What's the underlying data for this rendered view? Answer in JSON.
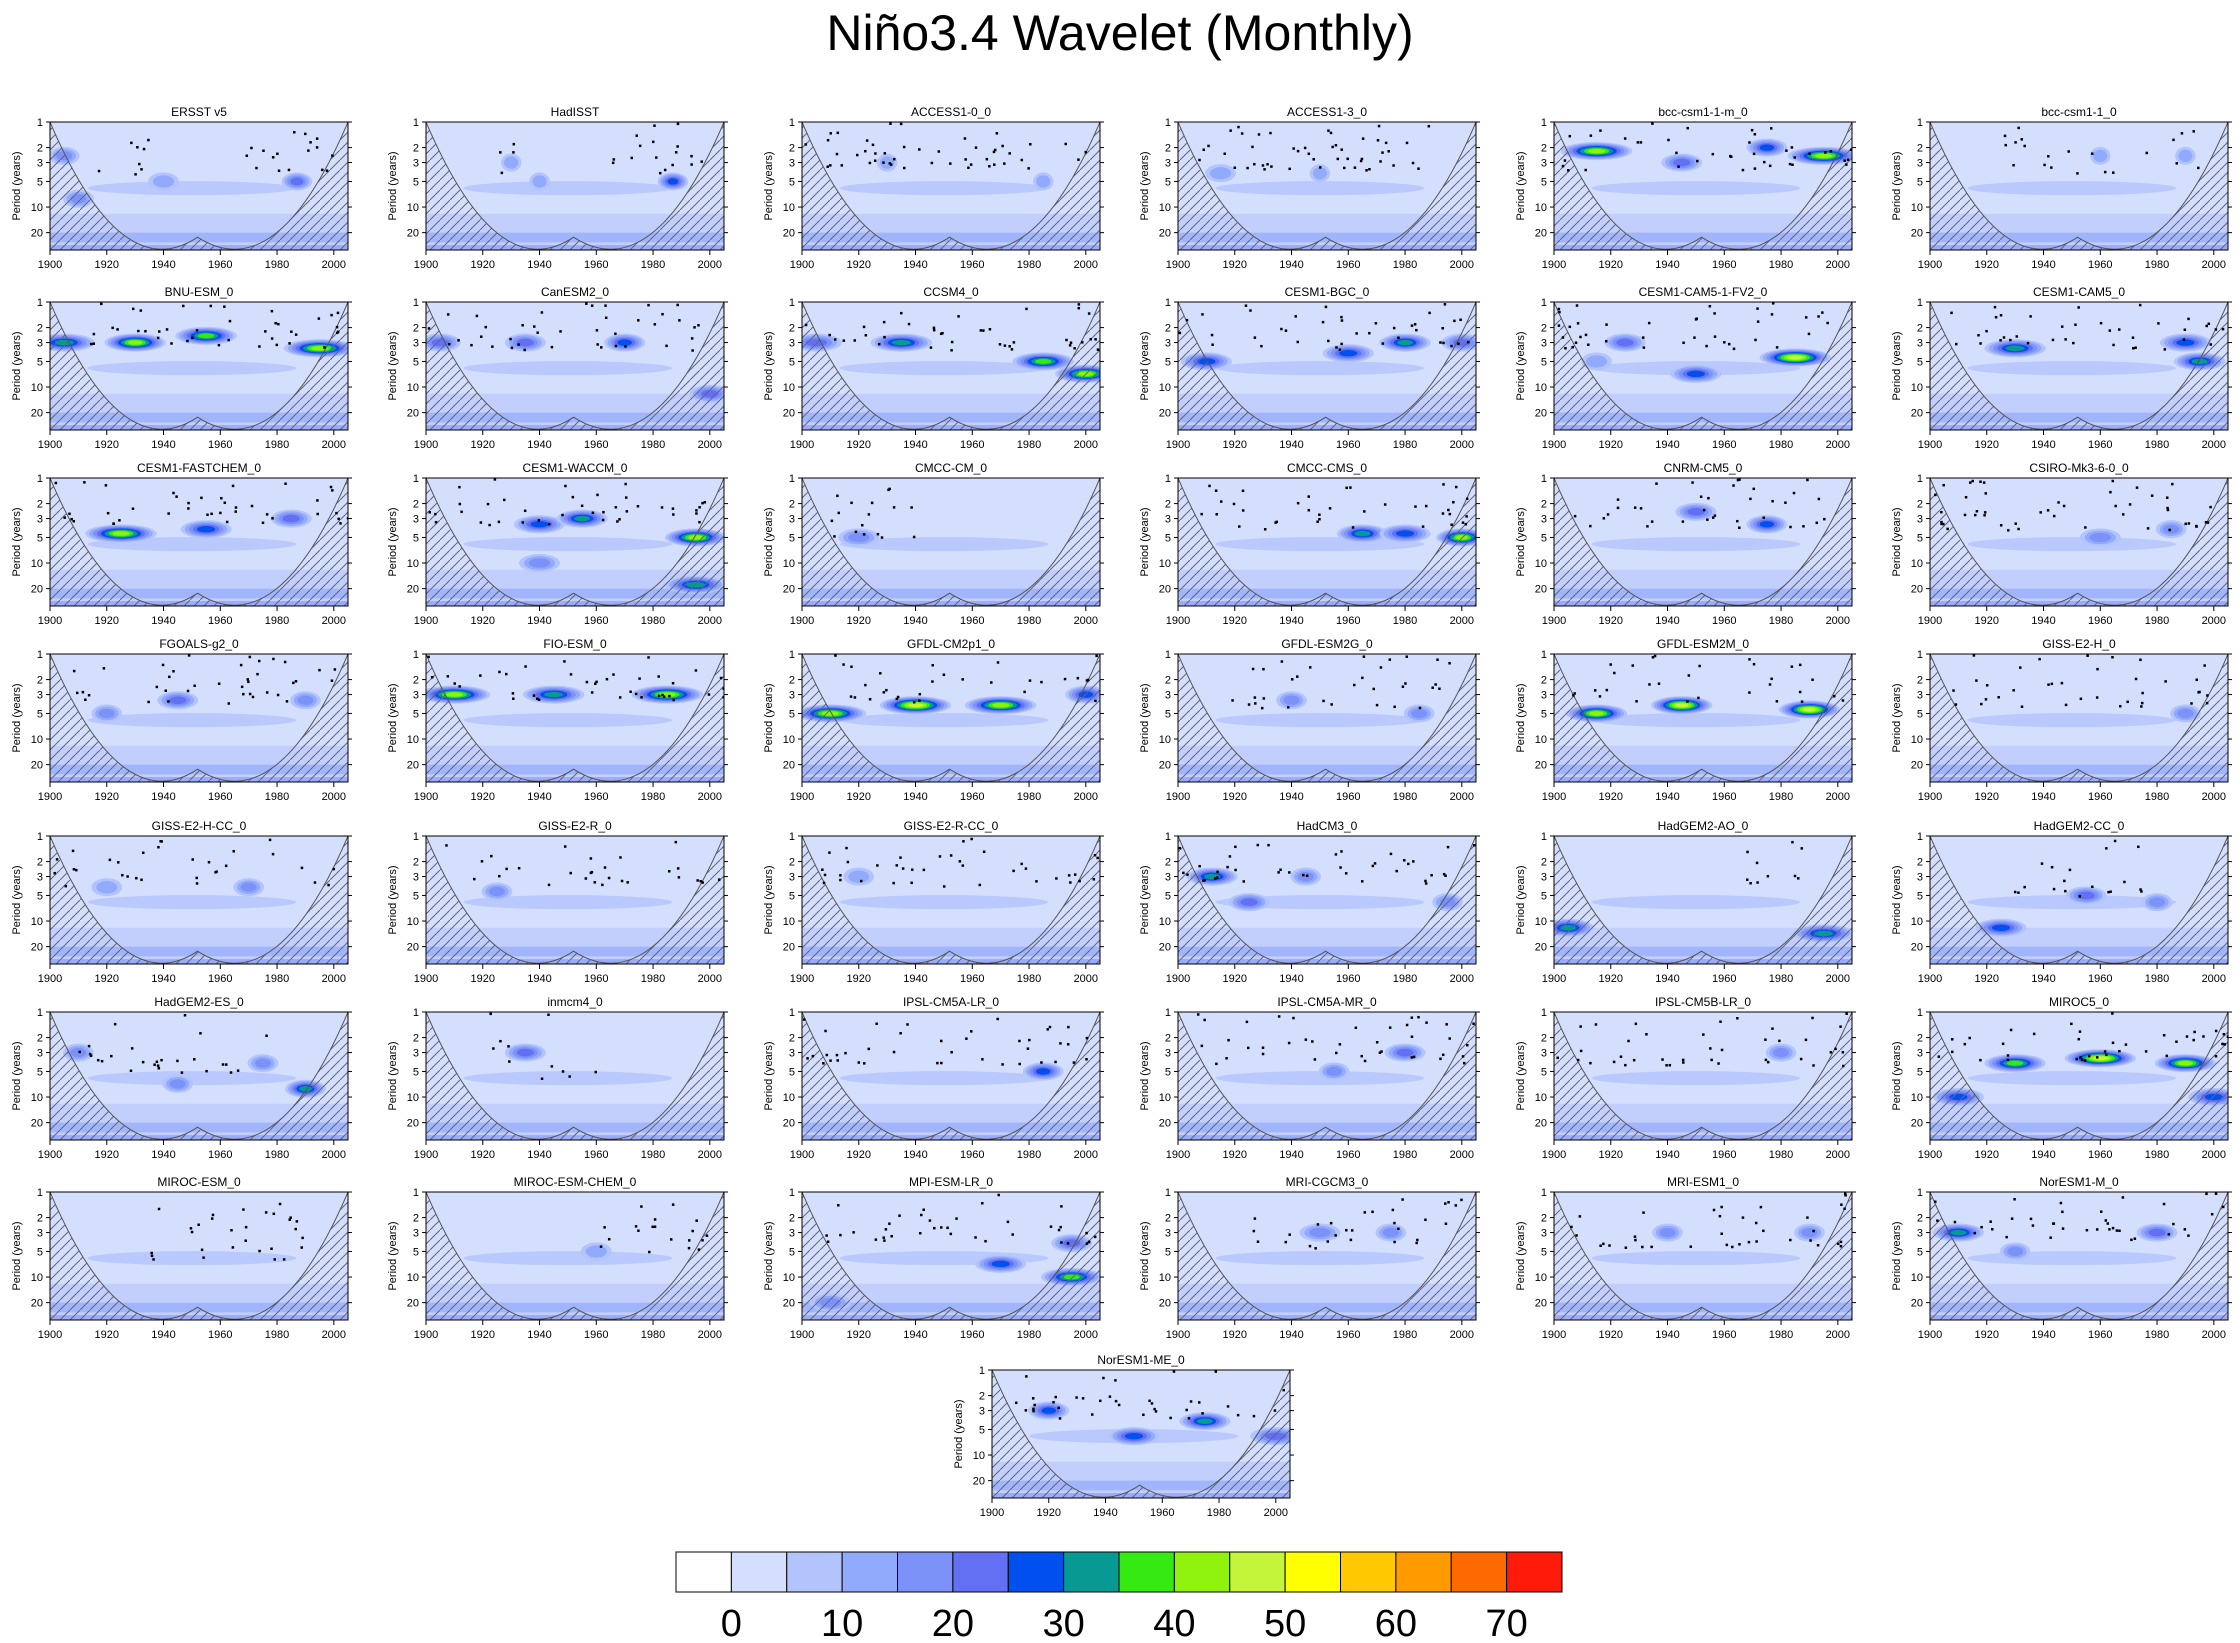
{
  "page": {
    "title": "Niño3.4 Wavelet (Monthly)"
  },
  "chart_data": {
    "type": "heatmap",
    "title": "Niño3.4 Wavelet (Monthly)",
    "xlabel": "",
    "ylabel": "Period (years)",
    "x_ticks": [
      1900,
      1920,
      1940,
      1960,
      1980,
      2000
    ],
    "y_ticks": [
      1,
      2,
      3,
      5,
      10,
      20
    ],
    "xlim": [
      1900,
      2005
    ],
    "ylim": [
      1,
      32
    ],
    "colorbar": {
      "levels": [
        0,
        5,
        10,
        15,
        20,
        25,
        30,
        35,
        40,
        45,
        50,
        55,
        60,
        65,
        70
      ],
      "tick_labels": [
        0,
        10,
        20,
        30,
        40,
        50,
        60,
        70
      ],
      "colors": [
        "#ffffff",
        "#d4defd",
        "#b3c3fc",
        "#91aafb",
        "#7d92f9",
        "#6470f3",
        "#0050f0",
        "#079a92",
        "#35ea13",
        "#8ff20c",
        "#c4f53a",
        "#ffff00",
        "#ffc800",
        "#ff9a00",
        "#ff6a00",
        "#ff1a0a"
      ]
    },
    "panels": [
      {
        "name": "ERSST v5",
        "blobs": [
          [
            1905,
            2.5,
            3,
            3
          ],
          [
            1940,
            5,
            3,
            2
          ],
          [
            1987,
            5,
            3,
            4
          ],
          [
            1910,
            8,
            3,
            3
          ]
        ],
        "dots": [
          [
            1912,
            1940,
            1.5,
            3
          ],
          [
            1965,
            2000,
            1.5,
            5
          ]
        ]
      },
      {
        "name": "HadISST",
        "blobs": [
          [
            1940,
            5,
            2,
            2
          ],
          [
            1987,
            5,
            3,
            5
          ],
          [
            1930,
            3,
            2,
            2
          ]
        ],
        "dots": [
          [
            1920,
            1935,
            1.5,
            3
          ],
          [
            1965,
            2000,
            1.5,
            5
          ]
        ]
      },
      {
        "name": "ACCESS1-0_0",
        "blobs": [
          [
            1930,
            3,
            2,
            2
          ],
          [
            1985,
            5,
            2,
            2
          ]
        ],
        "dots": [
          [
            1900,
            2000,
            1.2,
            5
          ]
        ]
      },
      {
        "name": "ACCESS1-3_0",
        "blobs": [
          [
            1915,
            4,
            3,
            2
          ],
          [
            1950,
            4,
            2,
            2
          ]
        ],
        "dots": [
          [
            1905,
            1990,
            1.3,
            6
          ]
        ]
      },
      {
        "name": "bcc-csm1-1-m_0",
        "blobs": [
          [
            1915,
            2.2,
            7,
            8
          ],
          [
            1945,
            3,
            4,
            4
          ],
          [
            1975,
            2,
            4,
            5
          ],
          [
            1995,
            2.5,
            7,
            8
          ]
        ],
        "dots": [
          [
            1900,
            2005,
            1.3,
            4
          ]
        ]
      },
      {
        "name": "bcc-csm1-1_0",
        "blobs": [
          [
            1960,
            2.5,
            2,
            2
          ],
          [
            1990,
            2.5,
            2,
            2
          ]
        ],
        "dots": [
          [
            1925,
            2000,
            1.5,
            3
          ]
        ]
      },
      {
        "name": "BNU-ESM_0",
        "blobs": [
          [
            1905,
            3,
            6,
            6
          ],
          [
            1930,
            3,
            6,
            8
          ],
          [
            1955,
            2.5,
            6,
            7
          ],
          [
            1995,
            3.5,
            7,
            8
          ]
        ],
        "dots": [
          [
            1900,
            2005,
            1.2,
            4
          ]
        ]
      },
      {
        "name": "CanESM2_0",
        "blobs": [
          [
            1905,
            3,
            4,
            4
          ],
          [
            1935,
            3,
            4,
            4
          ],
          [
            1970,
            3,
            4,
            5
          ],
          [
            2000,
            12,
            4,
            4
          ]
        ],
        "dots": [
          [
            1900,
            2005,
            1.3,
            4
          ]
        ]
      },
      {
        "name": "CCSM4_0",
        "blobs": [
          [
            1905,
            3,
            5,
            4
          ],
          [
            1935,
            3,
            6,
            6
          ],
          [
            1985,
            5,
            6,
            7
          ],
          [
            2000,
            7,
            6,
            8
          ]
        ],
        "dots": [
          [
            1900,
            2005,
            1.3,
            4
          ]
        ]
      },
      {
        "name": "CESM1-BGC_0",
        "blobs": [
          [
            1910,
            5,
            5,
            5
          ],
          [
            1960,
            4,
            5,
            5
          ],
          [
            1980,
            3,
            5,
            6
          ],
          [
            2000,
            3,
            4,
            4
          ]
        ],
        "dots": [
          [
            1900,
            2005,
            1.3,
            4
          ]
        ]
      },
      {
        "name": "CESM1-CAM5-1-FV2_0",
        "blobs": [
          [
            1925,
            3,
            4,
            4
          ],
          [
            1950,
            7,
            5,
            5
          ],
          [
            1985,
            4.5,
            7,
            9
          ],
          [
            1915,
            5,
            3,
            2
          ]
        ],
        "dots": [
          [
            1900,
            2005,
            1.3,
            4
          ]
        ]
      },
      {
        "name": "CESM1-CAM5_0",
        "blobs": [
          [
            1930,
            3.5,
            6,
            6
          ],
          [
            1990,
            3,
            5,
            5
          ],
          [
            1995,
            5,
            5,
            6
          ]
        ],
        "dots": [
          [
            1905,
            2005,
            1.3,
            4
          ]
        ]
      },
      {
        "name": "CESM1-FASTCHEM_0",
        "blobs": [
          [
            1925,
            4.5,
            7,
            8
          ],
          [
            1955,
            4,
            5,
            5
          ],
          [
            1985,
            3,
            4,
            4
          ]
        ],
        "dots": [
          [
            1900,
            2005,
            1.2,
            4
          ]
        ]
      },
      {
        "name": "CESM1-WACCM_0",
        "blobs": [
          [
            1940,
            3.5,
            5,
            5
          ],
          [
            1955,
            3,
            5,
            6
          ],
          [
            1995,
            5,
            6,
            8
          ],
          [
            1940,
            10,
            4,
            3
          ],
          [
            1995,
            18,
            6,
            6
          ]
        ],
        "dots": [
          [
            1900,
            2005,
            1.3,
            4
          ]
        ]
      },
      {
        "name": "CMCC-CM_0",
        "blobs": [
          [
            1920,
            5,
            4,
            3
          ]
        ],
        "dots": [
          [
            1910,
            1940,
            2,
            6
          ]
        ]
      },
      {
        "name": "CMCC-CMS_0",
        "blobs": [
          [
            1965,
            4.5,
            5,
            6
          ],
          [
            1980,
            4.5,
            5,
            5
          ],
          [
            2000,
            5,
            5,
            8
          ]
        ],
        "dots": [
          [
            1905,
            2005,
            1.5,
            4
          ]
        ]
      },
      {
        "name": "CNRM-CM5_0",
        "blobs": [
          [
            1950,
            2.5,
            4,
            4
          ],
          [
            1975,
            3.5,
            4,
            5
          ]
        ],
        "dots": [
          [
            1905,
            2000,
            1.4,
            4
          ]
        ]
      },
      {
        "name": "CSIRO-Mk3-6-0_0",
        "blobs": [
          [
            1960,
            5,
            4,
            3
          ],
          [
            1985,
            4,
            3,
            3
          ]
        ],
        "dots": [
          [
            1900,
            2000,
            1.5,
            5
          ]
        ]
      },
      {
        "name": "FGOALS-g2_0",
        "blobs": [
          [
            1920,
            5,
            3,
            3
          ],
          [
            1945,
            3.5,
            4,
            4
          ],
          [
            1990,
            3.5,
            3,
            3
          ]
        ],
        "dots": [
          [
            1900,
            2000,
            1.4,
            4
          ]
        ]
      },
      {
        "name": "FIO-ESM_0",
        "blobs": [
          [
            1910,
            3,
            7,
            8
          ],
          [
            1945,
            3,
            6,
            6
          ],
          [
            1985,
            3,
            7,
            8
          ]
        ],
        "dots": [
          [
            1900,
            2005,
            1.3,
            4
          ]
        ]
      },
      {
        "name": "GFDL-CM2p1_0",
        "blobs": [
          [
            1910,
            5,
            7,
            8
          ],
          [
            1940,
            4,
            7,
            9
          ],
          [
            1970,
            4,
            7,
            8
          ],
          [
            2000,
            3,
            4,
            5
          ]
        ],
        "dots": [
          [
            1900,
            2005,
            1.4,
            3
          ]
        ]
      },
      {
        "name": "GFDL-ESM2G_0",
        "blobs": [
          [
            1940,
            3.5,
            3,
            3
          ],
          [
            1985,
            5,
            3,
            3
          ]
        ],
        "dots": [
          [
            1915,
            2000,
            1.6,
            4
          ]
        ]
      },
      {
        "name": "GFDL-ESM2M_0",
        "blobs": [
          [
            1915,
            5,
            6,
            8
          ],
          [
            1945,
            4,
            6,
            9
          ],
          [
            1990,
            4.5,
            6,
            9
          ]
        ],
        "dots": [
          [
            1900,
            2005,
            1.3,
            3
          ]
        ]
      },
      {
        "name": "GISS-E2-H_0",
        "blobs": [
          [
            1990,
            5,
            3,
            3
          ]
        ],
        "dots": [
          [
            1905,
            2000,
            1.6,
            4
          ]
        ]
      },
      {
        "name": "GISS-E2-H-CC_0",
        "blobs": [
          [
            1920,
            4,
            3,
            2
          ],
          [
            1970,
            4,
            3,
            3
          ]
        ],
        "dots": [
          [
            1900,
            2005,
            1.4,
            3
          ]
        ]
      },
      {
        "name": "GISS-E2-R_0",
        "blobs": [
          [
            1925,
            4.5,
            3,
            3
          ]
        ],
        "dots": [
          [
            1905,
            2005,
            1.4,
            3
          ]
        ]
      },
      {
        "name": "GISS-E2-R-CC_0",
        "blobs": [
          [
            1920,
            3,
            3,
            2
          ]
        ],
        "dots": [
          [
            1905,
            2005,
            1.4,
            4
          ]
        ]
      },
      {
        "name": "HadCM3_0",
        "blobs": [
          [
            1912,
            3,
            5,
            6
          ],
          [
            1925,
            6,
            4,
            4
          ],
          [
            1945,
            3,
            3,
            3
          ],
          [
            1995,
            6,
            3,
            3
          ]
        ],
        "dots": [
          [
            1900,
            2005,
            1.3,
            4
          ]
        ]
      },
      {
        "name": "HadGEM2-AO_0",
        "blobs": [
          [
            1905,
            12,
            5,
            6
          ],
          [
            1995,
            14,
            6,
            6
          ]
        ],
        "dots": [
          [
            1965,
            1990,
            2,
            4
          ]
        ]
      },
      {
        "name": "HadGEM2-CC_0",
        "blobs": [
          [
            1925,
            12,
            5,
            5
          ],
          [
            1955,
            5,
            4,
            4
          ],
          [
            1980,
            6,
            3,
            3
          ]
        ],
        "dots": [
          [
            1925,
            1975,
            2,
            4
          ]
        ]
      },
      {
        "name": "HadGEM2-ES_0",
        "blobs": [
          [
            1910,
            3,
            3,
            3
          ],
          [
            1945,
            7,
            3,
            3
          ],
          [
            1975,
            4,
            3,
            3
          ],
          [
            1990,
            8,
            4,
            6
          ]
        ],
        "dots": [
          [
            1910,
            1980,
            2,
            4
          ]
        ]
      },
      {
        "name": "inmcm4_0",
        "blobs": [
          [
            1935,
            3,
            4,
            4
          ]
        ],
        "dots": [
          [
            1920,
            1960,
            2.5,
            3
          ]
        ]
      },
      {
        "name": "IPSL-CM5A-LR_0",
        "blobs": [
          [
            1985,
            5,
            4,
            5
          ]
        ],
        "dots": [
          [
            1900,
            2005,
            1.5,
            4
          ]
        ]
      },
      {
        "name": "IPSL-CM5A-MR_0",
        "blobs": [
          [
            1980,
            3,
            4,
            4
          ],
          [
            1955,
            5,
            3,
            3
          ]
        ],
        "dots": [
          [
            1900,
            2005,
            1.5,
            4
          ]
        ]
      },
      {
        "name": "IPSL-CM5B-LR_0",
        "blobs": [
          [
            1980,
            3,
            3,
            3
          ]
        ],
        "dots": [
          [
            1900,
            2005,
            1.6,
            4
          ]
        ]
      },
      {
        "name": "MIROC5_0",
        "blobs": [
          [
            1930,
            4,
            6,
            7
          ],
          [
            1960,
            3.5,
            7,
            9
          ],
          [
            1990,
            4,
            6,
            8
          ],
          [
            1910,
            10,
            5,
            5
          ],
          [
            2000,
            10,
            5,
            5
          ]
        ],
        "dots": [
          [
            1900,
            2005,
            1.3,
            4
          ]
        ]
      },
      {
        "name": "MIROC-ESM_0",
        "blobs": [],
        "dots": [
          [
            1930,
            1990,
            3,
            5
          ]
        ]
      },
      {
        "name": "MIROC-ESM-CHEM_0",
        "blobs": [
          [
            1960,
            5,
            3,
            2
          ]
        ],
        "dots": [
          [
            1960,
            2000,
            2,
            5
          ]
        ]
      },
      {
        "name": "MPI-ESM-LR_0",
        "blobs": [
          [
            1970,
            7,
            5,
            5
          ],
          [
            1995,
            10,
            6,
            7
          ],
          [
            1995,
            4,
            4,
            4
          ],
          [
            1910,
            20,
            4,
            3
          ]
        ],
        "dots": [
          [
            1905,
            2005,
            1.5,
            4
          ]
        ]
      },
      {
        "name": "MRI-CGCM3_0",
        "blobs": [
          [
            1950,
            3,
            4,
            3
          ],
          [
            1975,
            3,
            3,
            3
          ]
        ],
        "dots": [
          [
            1925,
            2000,
            1.8,
            4
          ]
        ]
      },
      {
        "name": "MRI-ESM1_0",
        "blobs": [
          [
            1940,
            3,
            3,
            3
          ],
          [
            1990,
            3,
            3,
            3
          ]
        ],
        "dots": [
          [
            1905,
            2005,
            1.7,
            4
          ]
        ]
      },
      {
        "name": "NorESM1-M_0",
        "blobs": [
          [
            1910,
            3,
            5,
            6
          ],
          [
            1980,
            3,
            4,
            4
          ],
          [
            1930,
            5,
            3,
            3
          ]
        ],
        "dots": [
          [
            1900,
            2005,
            1.3,
            4
          ]
        ]
      },
      {
        "name": "NorESM1-ME_0",
        "blobs": [
          [
            1920,
            3,
            4,
            5
          ],
          [
            1950,
            6,
            5,
            5
          ],
          [
            1975,
            4,
            5,
            6
          ],
          [
            2000,
            6,
            5,
            4
          ]
        ],
        "dots": [
          [
            1905,
            2005,
            1.3,
            4
          ]
        ]
      }
    ]
  }
}
